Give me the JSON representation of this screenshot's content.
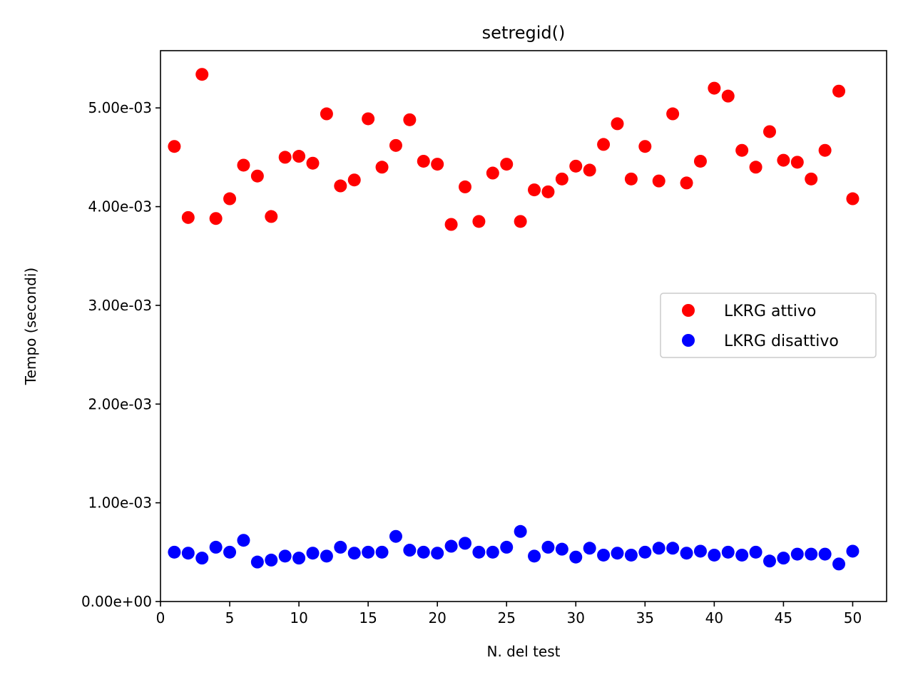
{
  "chart_data": {
    "type": "scatter",
    "title": "setregid()",
    "xlabel": "N. del test",
    "ylabel": "Tempo (secondi)",
    "xlim": [
      0,
      52.45
    ],
    "ylim": [
      0,
      0.00558
    ],
    "x_ticks": [
      0,
      5,
      10,
      15,
      20,
      25,
      30,
      35,
      40,
      45,
      50
    ],
    "x_tick_labels": [
      "0",
      "5",
      "10",
      "15",
      "20",
      "25",
      "30",
      "35",
      "40",
      "45",
      "50"
    ],
    "y_ticks": [
      0,
      0.001,
      0.002,
      0.003,
      0.004,
      0.005
    ],
    "y_tick_labels": [
      "0.00e+00",
      "1.00e-03",
      "2.00e-03",
      "3.00e-03",
      "4.00e-03",
      "5.00e-03"
    ],
    "grid": false,
    "legend_position": "center-right",
    "x": [
      1,
      2,
      3,
      4,
      5,
      6,
      7,
      8,
      9,
      10,
      11,
      12,
      13,
      14,
      15,
      16,
      17,
      18,
      19,
      20,
      21,
      22,
      23,
      24,
      25,
      26,
      27,
      28,
      29,
      30,
      31,
      32,
      33,
      34,
      35,
      36,
      37,
      38,
      39,
      40,
      41,
      42,
      43,
      44,
      45,
      46,
      47,
      48,
      49,
      50
    ],
    "series": [
      {
        "name": "LKRG attivo",
        "color": "#ff0000",
        "values": [
          0.00461,
          0.00389,
          0.00534,
          0.00388,
          0.00408,
          0.00442,
          0.00431,
          0.0039,
          0.0045,
          0.00451,
          0.00444,
          0.00494,
          0.00421,
          0.00427,
          0.00489,
          0.0044,
          0.00462,
          0.00488,
          0.00446,
          0.00443,
          0.00382,
          0.0042,
          0.00385,
          0.00434,
          0.00443,
          0.00385,
          0.00417,
          0.00415,
          0.00428,
          0.00441,
          0.00437,
          0.00463,
          0.00484,
          0.00428,
          0.00461,
          0.00426,
          0.00494,
          0.00424,
          0.00446,
          0.0052,
          0.00512,
          0.00457,
          0.0044,
          0.00476,
          0.00447,
          0.00445,
          0.00428,
          0.00457,
          0.00517,
          0.00408
        ]
      },
      {
        "name": "LKRG disattivo",
        "color": "#0000ff",
        "values": [
          0.0005,
          0.00049,
          0.00044,
          0.00055,
          0.0005,
          0.00062,
          0.0004,
          0.00042,
          0.00046,
          0.00044,
          0.00049,
          0.00046,
          0.00055,
          0.00049,
          0.0005,
          0.0005,
          0.00066,
          0.00052,
          0.0005,
          0.00049,
          0.00056,
          0.00059,
          0.0005,
          0.0005,
          0.00055,
          0.00071,
          0.00046,
          0.00055,
          0.00053,
          0.00045,
          0.00054,
          0.00047,
          0.00049,
          0.00047,
          0.0005,
          0.00054,
          0.00054,
          0.00049,
          0.00051,
          0.00047,
          0.0005,
          0.00047,
          0.0005,
          0.00041,
          0.00044,
          0.00048,
          0.00048,
          0.00048,
          0.00038,
          0.00051
        ]
      }
    ]
  }
}
